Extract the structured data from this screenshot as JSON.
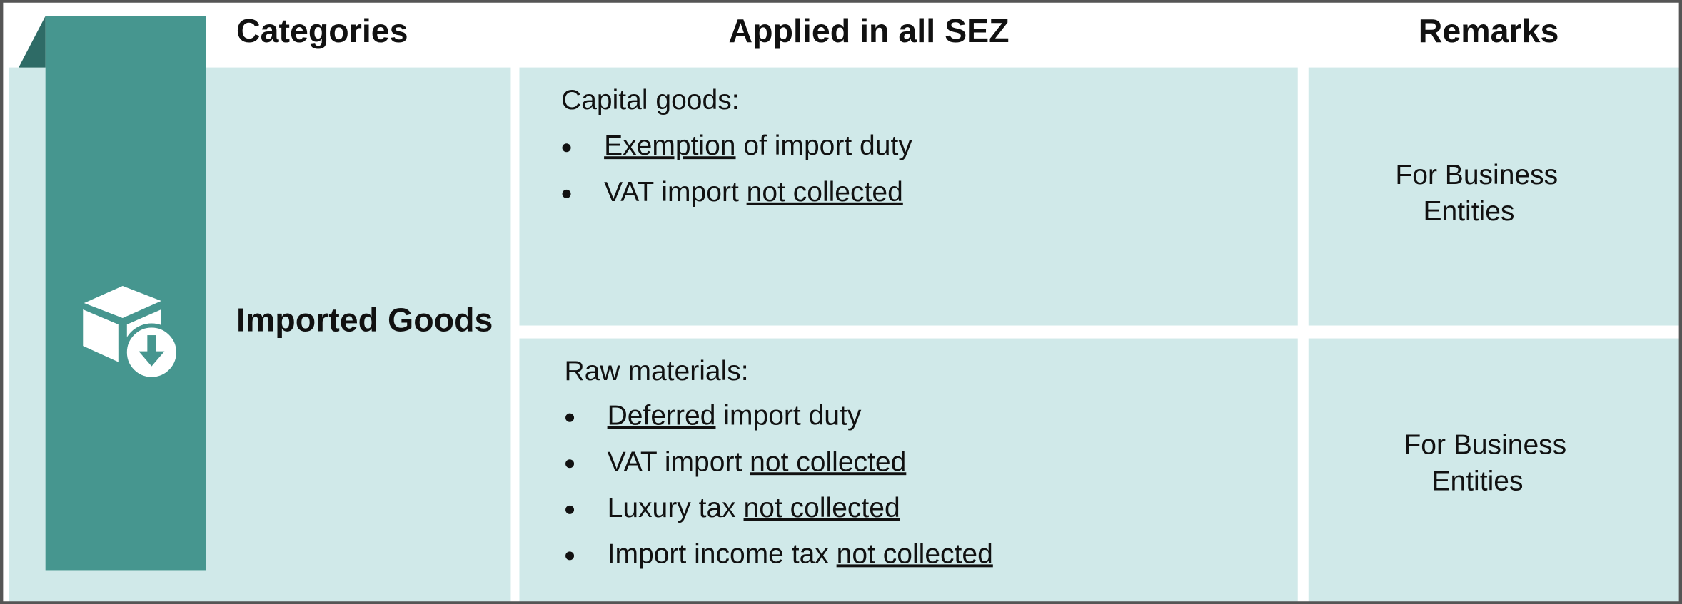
{
  "header": {
    "columns": [
      "Categories",
      "Applied in all SEZ",
      "Remarks"
    ]
  },
  "category": "Imported Goods",
  "rows": [
    {
      "title": "Capital goods:",
      "items": [
        [
          {
            "text": "Exemption",
            "underline": true
          },
          {
            "text": " of import duty",
            "underline": false
          }
        ],
        [
          {
            "text": "VAT import ",
            "underline": false
          },
          {
            "text": "not collected",
            "underline": true
          }
        ]
      ],
      "remarks": [
        "For Business",
        "Entities"
      ]
    },
    {
      "title": "Raw materials:",
      "items": [
        [
          {
            "text": "Deferred",
            "underline": true
          },
          {
            "text": " import duty",
            "underline": false
          }
        ],
        [
          {
            "text": "VAT import ",
            "underline": false
          },
          {
            "text": "not collected",
            "underline": true
          }
        ],
        [
          {
            "text": "Luxury tax ",
            "underline": false
          },
          {
            "text": "not collected",
            "underline": true
          }
        ],
        [
          {
            "text": "Import income tax ",
            "underline": false
          },
          {
            "text": "not collected",
            "underline": true
          }
        ]
      ],
      "remarks": [
        "For Business",
        "Entities"
      ]
    }
  ]
}
